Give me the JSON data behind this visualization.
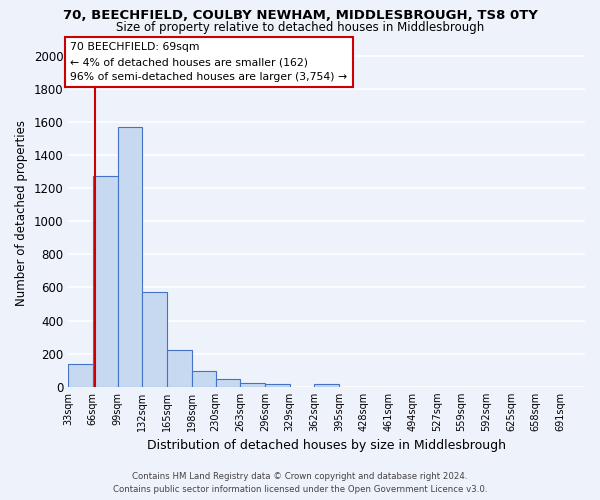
{
  "title": "70, BEECHFIELD, COULBY NEWHAM, MIDDLESBROUGH, TS8 0TY",
  "subtitle": "Size of property relative to detached houses in Middlesbrough",
  "xlabel": "Distribution of detached houses by size in Middlesbrough",
  "ylabel": "Number of detached properties",
  "bin_labels": [
    "33sqm",
    "66sqm",
    "99sqm",
    "132sqm",
    "165sqm",
    "198sqm",
    "230sqm",
    "263sqm",
    "296sqm",
    "329sqm",
    "362sqm",
    "395sqm",
    "428sqm",
    "461sqm",
    "494sqm",
    "527sqm",
    "559sqm",
    "592sqm",
    "625sqm",
    "658sqm",
    "691sqm"
  ],
  "bin_edges": [
    33,
    66,
    99,
    132,
    165,
    198,
    230,
    263,
    296,
    329,
    362,
    395,
    428,
    461,
    494,
    527,
    559,
    592,
    625,
    658,
    691
  ],
  "bar_heights": [
    140,
    1270,
    1570,
    570,
    220,
    95,
    50,
    25,
    15,
    0,
    15,
    0,
    0,
    0,
    0,
    0,
    0,
    0,
    0,
    0,
    0
  ],
  "bar_color": "#c6d9f0",
  "bar_edge_color": "#4472c4",
  "ylim": [
    0,
    2100
  ],
  "yticks": [
    0,
    200,
    400,
    600,
    800,
    1000,
    1200,
    1400,
    1600,
    1800,
    2000
  ],
  "property_line_x": 69,
  "property_line_color": "#cc0000",
  "annotation_line1": "70 BEECHFIELD: 69sqm",
  "annotation_line2": "← 4% of detached houses are smaller (162)",
  "annotation_line3": "96% of semi-detached houses are larger (3,754) →",
  "annotation_box_color": "#ffffff",
  "annotation_box_edge": "#cc0000",
  "footer_line1": "Contains HM Land Registry data © Crown copyright and database right 2024.",
  "footer_line2": "Contains public sector information licensed under the Open Government Licence v3.0.",
  "background_color": "#eef2fb",
  "grid_color": "#ffffff"
}
